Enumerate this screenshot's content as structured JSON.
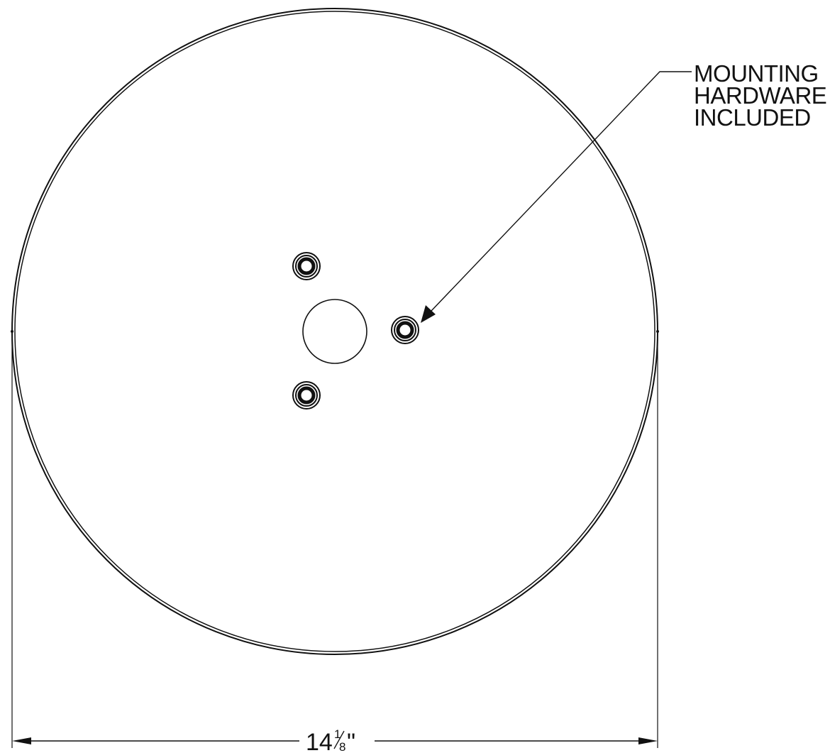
{
  "callout": {
    "lines": [
      "MOUNTING",
      "HARDWARE",
      "INCLUDED"
    ]
  },
  "dimension": {
    "whole": "14",
    "numerator": "1",
    "denominator": "8",
    "unit": "\""
  },
  "colors": {
    "line": "#111111",
    "background": "#ffffff"
  }
}
